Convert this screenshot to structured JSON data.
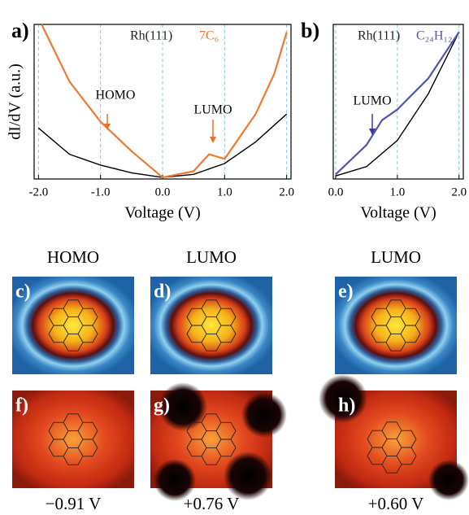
{
  "chart_data": [
    {
      "type": "line",
      "panel": "a)",
      "x_label": "Voltage (V)",
      "y_label": "dI/dV (a.u.)",
      "xlim": [
        -2.07,
        2.07
      ],
      "ylim": [
        0,
        1
      ],
      "xticks": [
        {
          "value": -2,
          "label": "-2.0"
        },
        {
          "value": -1,
          "label": "-1.0"
        },
        {
          "value": 0,
          "label": "0.0"
        },
        {
          "value": 1,
          "label": "1.0"
        },
        {
          "value": 2,
          "label": "2.0"
        }
      ],
      "grid": true,
      "series": [
        {
          "name": "Rh(111)",
          "color": "#000000",
          "x": [
            -2.0,
            -1.5,
            -1.0,
            -0.5,
            0.0,
            0.5,
            1.0,
            1.5,
            2.0
          ],
          "values": [
            0.33,
            0.16,
            0.09,
            0.04,
            0.01,
            0.03,
            0.1,
            0.24,
            0.42
          ]
        },
        {
          "name": "7C₆",
          "color": "#f07a30",
          "x": [
            -1.95,
            -1.5,
            -1.0,
            -0.5,
            0.0,
            0.5,
            0.75,
            1.0,
            1.5,
            1.8,
            2.0
          ],
          "values": [
            1.0,
            0.63,
            0.37,
            0.18,
            0.01,
            0.05,
            0.16,
            0.13,
            0.42,
            0.68,
            0.95
          ]
        }
      ],
      "annotations": [
        {
          "text": "HOMO"
        },
        {
          "text": "LUMO"
        }
      ]
    },
    {
      "type": "line",
      "panel": "b)",
      "x_label": "Voltage (V)",
      "xlim": [
        -0.04,
        2.07
      ],
      "ylim": [
        0,
        1
      ],
      "xticks": [
        {
          "value": 0,
          "label": "0.0"
        },
        {
          "value": 1,
          "label": "1.0"
        },
        {
          "value": 2,
          "label": "2.0"
        }
      ],
      "grid": true,
      "series": [
        {
          "name": "Rh(111)",
          "color": "#000000",
          "x": [
            0.0,
            0.5,
            1.0,
            1.5,
            2.0
          ],
          "values": [
            0.02,
            0.08,
            0.25,
            0.55,
            0.95
          ]
        },
        {
          "name": "C₂₄H₁₂",
          "color": "#5555aa",
          "x": [
            0.0,
            0.5,
            0.75,
            1.0,
            1.5,
            2.0
          ],
          "values": [
            0.03,
            0.22,
            0.38,
            0.45,
            0.65,
            0.95
          ]
        }
      ],
      "annotations": [
        {
          "text": "LUMO"
        }
      ]
    }
  ],
  "images": {
    "headers": [
      "HOMO",
      "LUMO",
      "LUMO"
    ],
    "top_panels": [
      "c)",
      "d)",
      "e)"
    ],
    "bottom_panels": [
      "f)",
      "g)",
      "h)"
    ],
    "voltages": [
      "−0.91 V",
      "+0.76 V",
      "+0.60 V"
    ]
  }
}
